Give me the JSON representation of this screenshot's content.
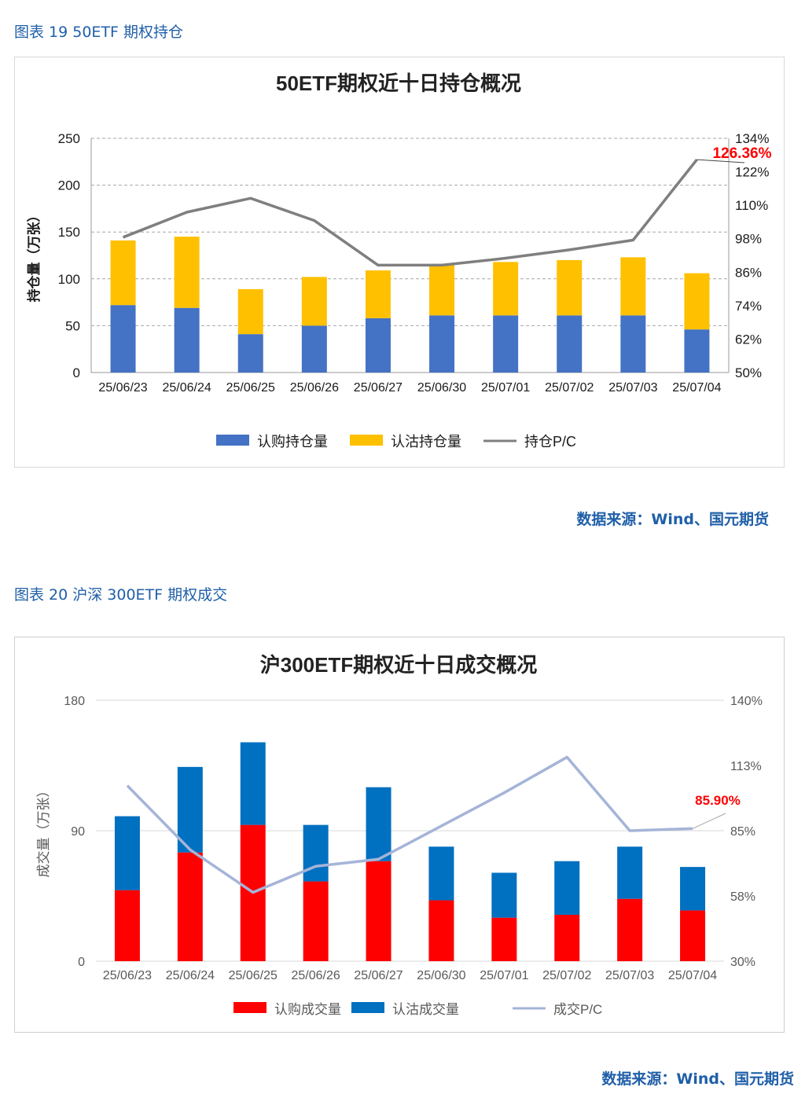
{
  "figures": [
    {
      "caption": "图表 19  50ETF 期权持仓",
      "source": "数据来源：Wind、国元期货"
    },
    {
      "caption": "图表 20  沪深 300ETF 期权成交",
      "source": "数据来源：Wind、国元期货"
    }
  ],
  "chart_data": [
    {
      "type": "bar",
      "stacked": true,
      "title": "50ETF期权近十日持仓概况",
      "ylabel": "持仓量（万张）",
      "ylim": [
        0,
        250
      ],
      "yticks": [
        "0",
        "50",
        "100",
        "150",
        "200",
        "250"
      ],
      "y2lim": [
        0.5,
        1.34
      ],
      "y2ticks": [
        "50%",
        "62%",
        "74%",
        "86%",
        "98%",
        "110%",
        "122%",
        "134%"
      ],
      "categories": [
        "25/06/23",
        "25/06/24",
        "25/06/25",
        "25/06/26",
        "25/06/27",
        "25/06/30",
        "25/07/01",
        "25/07/02",
        "25/07/03",
        "25/07/04"
      ],
      "series": [
        {
          "name": "认购持仓量",
          "kind": "bar",
          "color": "#4472c4",
          "values": [
            72,
            69,
            41,
            50,
            58,
            61,
            61,
            61,
            61,
            46
          ]
        },
        {
          "name": "认沽持仓量",
          "kind": "bar",
          "color": "#ffc000",
          "values": [
            69,
            76,
            48,
            52,
            51,
            55,
            57,
            59,
            62,
            60
          ]
        },
        {
          "name": "持仓P/C",
          "kind": "line",
          "axis": "right",
          "color": "#7f7f7f",
          "values": [
            0.985,
            1.075,
            1.125,
            1.045,
            0.885,
            0.885,
            0.91,
            0.94,
            0.975,
            1.2636
          ]
        }
      ],
      "annotation": {
        "text": "126.36%",
        "color": "#ff0000"
      },
      "grid": "dashed horizontal",
      "legend": "bottom"
    },
    {
      "type": "bar",
      "stacked": true,
      "title": "沪300ETF期权近十日成交概况",
      "ylabel": "成交量（万张）",
      "ylim": [
        0,
        180
      ],
      "yticks": [
        "0",
        "90",
        "180"
      ],
      "y2lim": [
        0.3,
        1.4
      ],
      "y2ticks": [
        "30%",
        "58%",
        "85%",
        "113%",
        "140%"
      ],
      "categories": [
        "25/06/23",
        "25/06/24",
        "25/06/25",
        "25/06/26",
        "25/06/27",
        "25/06/30",
        "25/07/01",
        "25/07/02",
        "25/07/03",
        "25/07/04"
      ],
      "series": [
        {
          "name": "认购成交量",
          "kind": "bar",
          "color": "#ff0000",
          "values": [
            49,
            75,
            94,
            55,
            69,
            42,
            30,
            32,
            43,
            35
          ]
        },
        {
          "name": "认沽成交量",
          "kind": "bar",
          "color": "#0070c0",
          "values": [
            51,
            59,
            57,
            39,
            51,
            37,
            31,
            37,
            36,
            30
          ]
        },
        {
          "name": "成交P/C",
          "kind": "line",
          "axis": "right",
          "color": "#a5b4d8",
          "values": [
            1.04,
            0.77,
            0.59,
            0.7,
            0.73,
            0.87,
            1.01,
            1.16,
            0.85,
            0.859
          ]
        }
      ],
      "annotation": {
        "text": "85.90%",
        "color": "#ff0000"
      },
      "grid": "horizontal",
      "legend": "bottom"
    }
  ]
}
